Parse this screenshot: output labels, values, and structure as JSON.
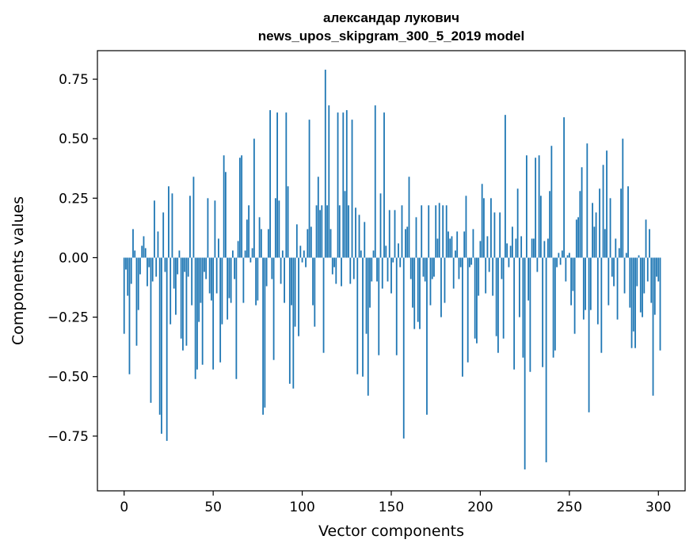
{
  "chart_data": {
    "type": "bar",
    "title_line1": "александар лукович",
    "title_line2": "news_upos_skipgram_300_5_2019 model",
    "xlabel": "Vector components",
    "ylabel": "Components values",
    "xlim": [
      -15,
      315
    ],
    "ylim": [
      -0.98,
      0.87
    ],
    "xticks": [
      0,
      50,
      100,
      150,
      200,
      250,
      300
    ],
    "xtick_labels": [
      "0",
      "50",
      "100",
      "150",
      "200",
      "250",
      "300"
    ],
    "yticks": [
      -0.75,
      -0.5,
      -0.25,
      0.0,
      0.25,
      0.5,
      0.75
    ],
    "ytick_labels": [
      "−0.75",
      "−0.50",
      "−0.25",
      "0.00",
      "0.25",
      "0.50",
      "0.75"
    ],
    "bar_color": "#1f77b4",
    "grid": false,
    "values": [
      -0.32,
      -0.05,
      -0.16,
      -0.49,
      -0.11,
      0.12,
      0.03,
      -0.37,
      -0.22,
      -0.07,
      0.05,
      0.09,
      0.04,
      -0.12,
      -0.04,
      -0.61,
      -0.1,
      0.24,
      -0.08,
      0.11,
      -0.66,
      -0.74,
      0.19,
      -0.06,
      -0.77,
      0.3,
      -0.28,
      0.27,
      -0.13,
      -0.24,
      -0.07,
      0.03,
      -0.34,
      -0.39,
      -0.06,
      -0.37,
      -0.08,
      0.26,
      -0.2,
      0.34,
      -0.51,
      -0.47,
      -0.27,
      -0.19,
      -0.45,
      -0.06,
      -0.09,
      0.25,
      -0.15,
      -0.18,
      -0.47,
      0.24,
      -0.15,
      0.08,
      -0.44,
      -0.28,
      0.43,
      0.36,
      -0.26,
      -0.17,
      -0.19,
      0.03,
      -0.09,
      -0.51,
      0.07,
      0.42,
      0.43,
      -0.19,
      0.03,
      0.16,
      0.22,
      -0.02,
      0.04,
      0.5,
      -0.2,
      -0.18,
      0.17,
      0.12,
      -0.66,
      -0.63,
      -0.12,
      0.12,
      0.62,
      -0.09,
      -0.43,
      0.25,
      0.61,
      0.24,
      -0.11,
      0.03,
      -0.19,
      0.61,
      0.3,
      -0.53,
      -0.2,
      -0.55,
      -0.29,
      0.14,
      -0.33,
      0.05,
      -0.02,
      0.03,
      -0.04,
      0.12,
      0.58,
      0.13,
      -0.2,
      -0.29,
      0.22,
      0.34,
      0.2,
      0.22,
      -0.4,
      0.79,
      0.22,
      0.64,
      0.12,
      -0.07,
      -0.04,
      -0.11,
      0.61,
      0.22,
      -0.12,
      0.61,
      0.28,
      0.62,
      0.22,
      -0.11,
      0.58,
      -0.09,
      0.21,
      -0.49,
      0.18,
      0.03,
      -0.5,
      0.15,
      -0.32,
      -0.58,
      -0.21,
      -0.1,
      0.03,
      0.64,
      -0.1,
      -0.41,
      0.27,
      -0.13,
      0.61,
      0.05,
      -0.1,
      0.2,
      -0.15,
      -0.02,
      0.2,
      -0.41,
      0.06,
      -0.04,
      0.22,
      -0.76,
      0.12,
      0.13,
      0.34,
      -0.09,
      -0.21,
      -0.3,
      0.17,
      -0.27,
      -0.3,
      0.22,
      -0.08,
      -0.1,
      -0.66,
      0.22,
      -0.2,
      -0.09,
      -0.08,
      0.22,
      0.08,
      0.23,
      -0.25,
      0.22,
      -0.19,
      0.22,
      0.11,
      0.08,
      0.09,
      -0.13,
      0.03,
      0.11,
      -0.09,
      -0.04,
      -0.5,
      0.11,
      0.26,
      -0.44,
      -0.04,
      -0.03,
      0.12,
      -0.34,
      -0.36,
      -0.16,
      0.07,
      0.31,
      0.25,
      -0.15,
      0.09,
      -0.06,
      0.25,
      -0.16,
      0.19,
      -0.33,
      -0.4,
      0.19,
      -0.09,
      -0.34,
      0.6,
      0.06,
      -0.04,
      0.05,
      0.13,
      -0.47,
      0.08,
      0.29,
      -0.25,
      0.09,
      -0.42,
      -0.89,
      0.43,
      -0.18,
      -0.48,
      0.08,
      0.08,
      0.42,
      -0.06,
      0.43,
      0.26,
      -0.46,
      0.07,
      -0.86,
      0.08,
      0.28,
      0.47,
      -0.42,
      -0.39,
      -0.04,
      0.02,
      -0.03,
      0.03,
      0.59,
      -0.1,
      0.01,
      0.02,
      -0.2,
      -0.14,
      -0.32,
      0.16,
      0.17,
      0.28,
      0.38,
      -0.26,
      -0.22,
      0.48,
      -0.65,
      -0.22,
      0.23,
      0.13,
      0.19,
      -0.28,
      0.29,
      -0.4,
      0.39,
      0.12,
      0.45,
      -0.2,
      0.25,
      -0.08,
      -0.12,
      0.08,
      -0.26,
      0.04,
      0.29,
      0.5,
      -0.15,
      0.02,
      0.3,
      -0.21,
      -0.38,
      -0.31,
      -0.38,
      -0.12,
      0.01,
      -0.23,
      -0.25,
      -0.15,
      0.16,
      -0.1,
      0.12,
      -0.19,
      -0.58,
      -0.24,
      -0.08,
      -0.1,
      -0.39
    ]
  }
}
